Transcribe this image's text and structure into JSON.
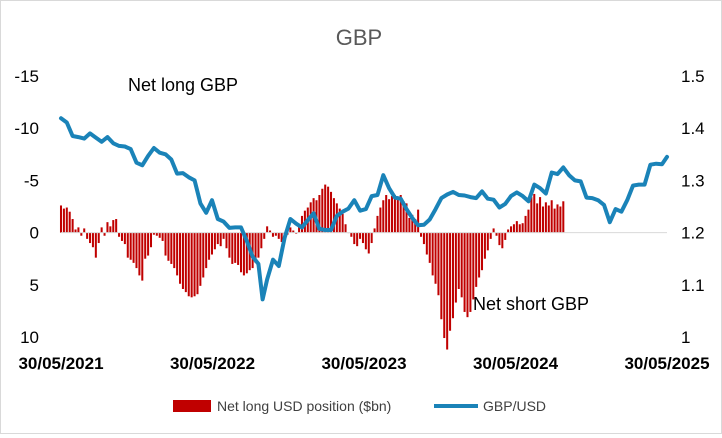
{
  "chart_data": {
    "type": "bar+line",
    "title": "GBP",
    "colors": {
      "bars": "#c00000",
      "line": "#1a83b8",
      "zero_line": "#d9d9d9"
    },
    "grid": false,
    "legend_position": "bottom",
    "left_axis": {
      "inverted": true,
      "ylim": [
        10,
        -15
      ],
      "ticks": [
        -15,
        -10,
        -5,
        0,
        5,
        10
      ],
      "tick_labels": [
        "-15",
        "-10",
        "-5",
        "0",
        "5",
        "10"
      ]
    },
    "right_axis": {
      "ylim": [
        1.0,
        1.5
      ],
      "ticks": [
        1.0,
        1.1,
        1.2,
        1.3,
        1.4,
        1.5
      ],
      "tick_labels": [
        "1",
        "1.1",
        "1.2",
        "1.3",
        "1.4",
        "1.5"
      ]
    },
    "x_axis": {
      "start": "2021-05-30",
      "end": "2025-05-30",
      "tick_labels": [
        "30/05/2021",
        "30/05/2022",
        "30/05/2023",
        "30/05/2024",
        "30/05/2025"
      ]
    },
    "annotations": {
      "top_left": "Net long GBP",
      "bottom_right": "Net short GBP"
    },
    "series": [
      {
        "name": "Net long USD position ($bn)",
        "type": "bar",
        "frequency": "weekly",
        "values": [
          -2.6,
          -2.3,
          -2.4,
          -2.0,
          -1.3,
          -0.3,
          -0.5,
          0.3,
          -0.4,
          0.6,
          1.0,
          1.4,
          2.4,
          1.0,
          -0.5,
          0.3,
          -1.0,
          -0.6,
          -1.2,
          -1.3,
          0.4,
          0.8,
          1.1,
          2.4,
          2.6,
          2.9,
          3.4,
          4.1,
          4.6,
          2.5,
          2.2,
          1.4,
          0.2,
          0.3,
          0.5,
          0.8,
          2.2,
          2.7,
          3.0,
          3.4,
          4.1,
          4.9,
          5.4,
          5.7,
          6.1,
          6.2,
          6.1,
          5.9,
          5.1,
          4.3,
          3.4,
          2.6,
          2.1,
          1.6,
          1.1,
          1.3,
          0.6,
          1.5,
          2.4,
          3.0,
          2.9,
          3.1,
          3.8,
          4.1,
          3.9,
          3.6,
          3.4,
          2.9,
          2.4,
          1.5,
          0.6,
          -0.6,
          -0.2,
          0.4,
          0.3,
          0.6,
          0.9,
          0.8,
          0.2,
          -0.5,
          -0.2,
          0.1,
          -0.6,
          -1.6,
          -2.1,
          -2.4,
          -2.9,
          -3.3,
          -3.1,
          -3.6,
          -4.2,
          -4.6,
          -4.4,
          -3.9,
          -3.3,
          -2.8,
          -2.3,
          -1.8,
          -0.8,
          0.0,
          0.4,
          1.1,
          1.3,
          0.6,
          1.0,
          1.6,
          2.0,
          1.0,
          -0.4,
          -1.6,
          -2.4,
          -3.1,
          -3.6,
          -3.2,
          -3.5,
          -3.6,
          -3.4,
          -3.6,
          -3.0,
          -2.8,
          -1.4,
          -1.7,
          -1.3,
          -2.2,
          0.4,
          1.1,
          2.1,
          2.9,
          4.1,
          4.9,
          6.0,
          8.3,
          10.1,
          11.2,
          9.4,
          8.2,
          6.7,
          5.4,
          6.2,
          7.6,
          8.1,
          7.6,
          6.4,
          5.2,
          4.3,
          3.6,
          2.5,
          1.7,
          0.6,
          -0.4,
          0.3,
          1.2,
          1.5,
          0.7,
          -0.3,
          -0.6,
          -0.8,
          -1.1,
          -0.8,
          -0.9,
          -1.6,
          -2.2,
          -3.4,
          -3.7,
          -2.8,
          -3.4,
          -2.5,
          -2.9,
          -2.6,
          -3.1,
          -2.3,
          -2.7,
          -2.5,
          -3.0
        ]
      },
      {
        "name": "GBP/USD",
        "type": "line",
        "points": [
          [
            "2021-05-30",
            1.419
          ],
          [
            "2021-06-13",
            1.411
          ],
          [
            "2021-06-27",
            1.385
          ],
          [
            "2021-07-11",
            1.383
          ],
          [
            "2021-07-25",
            1.38
          ],
          [
            "2021-08-08",
            1.39
          ],
          [
            "2021-08-22",
            1.382
          ],
          [
            "2021-09-05",
            1.374
          ],
          [
            "2021-09-19",
            1.383
          ],
          [
            "2021-10-03",
            1.371
          ],
          [
            "2021-10-17",
            1.366
          ],
          [
            "2021-10-31",
            1.365
          ],
          [
            "2021-11-14",
            1.36
          ],
          [
            "2021-11-28",
            1.334
          ],
          [
            "2021-12-12",
            1.329
          ],
          [
            "2021-12-26",
            1.347
          ],
          [
            "2022-01-09",
            1.362
          ],
          [
            "2022-01-23",
            1.353
          ],
          [
            "2022-02-06",
            1.35
          ],
          [
            "2022-02-20",
            1.34
          ],
          [
            "2022-03-06",
            1.313
          ],
          [
            "2022-03-20",
            1.314
          ],
          [
            "2022-04-03",
            1.306
          ],
          [
            "2022-04-17",
            1.3
          ],
          [
            "2022-05-01",
            1.256
          ],
          [
            "2022-05-15",
            1.238
          ],
          [
            "2022-05-29",
            1.262
          ],
          [
            "2022-06-12",
            1.226
          ],
          [
            "2022-06-26",
            1.221
          ],
          [
            "2022-07-10",
            1.209
          ],
          [
            "2022-07-24",
            1.21
          ],
          [
            "2022-08-07",
            1.21
          ],
          [
            "2022-08-21",
            1.184
          ],
          [
            "2022-09-04",
            1.154
          ],
          [
            "2022-09-18",
            1.14
          ],
          [
            "2022-09-28",
            1.072
          ],
          [
            "2022-10-09",
            1.11
          ],
          [
            "2022-10-23",
            1.148
          ],
          [
            "2022-11-06",
            1.136
          ],
          [
            "2022-11-20",
            1.19
          ],
          [
            "2022-12-04",
            1.226
          ],
          [
            "2022-12-18",
            1.217
          ],
          [
            "2023-01-01",
            1.21
          ],
          [
            "2023-01-15",
            1.224
          ],
          [
            "2023-01-29",
            1.237
          ],
          [
            "2023-02-12",
            1.207
          ],
          [
            "2023-02-26",
            1.205
          ],
          [
            "2023-03-12",
            1.205
          ],
          [
            "2023-03-26",
            1.232
          ],
          [
            "2023-04-09",
            1.24
          ],
          [
            "2023-04-23",
            1.246
          ],
          [
            "2023-05-07",
            1.262
          ],
          [
            "2023-05-21",
            1.242
          ],
          [
            "2023-06-04",
            1.245
          ],
          [
            "2023-06-18",
            1.27
          ],
          [
            "2023-07-02",
            1.272
          ],
          [
            "2023-07-16",
            1.31
          ],
          [
            "2023-07-30",
            1.285
          ],
          [
            "2023-08-13",
            1.267
          ],
          [
            "2023-08-27",
            1.265
          ],
          [
            "2023-09-10",
            1.245
          ],
          [
            "2023-09-24",
            1.228
          ],
          [
            "2023-10-08",
            1.214
          ],
          [
            "2023-10-22",
            1.215
          ],
          [
            "2023-11-05",
            1.225
          ],
          [
            "2023-11-19",
            1.245
          ],
          [
            "2023-12-03",
            1.266
          ],
          [
            "2023-12-17",
            1.273
          ],
          [
            "2023-12-31",
            1.278
          ],
          [
            "2024-01-14",
            1.272
          ],
          [
            "2024-01-28",
            1.271
          ],
          [
            "2024-02-11",
            1.268
          ],
          [
            "2024-02-25",
            1.266
          ],
          [
            "2024-03-10",
            1.279
          ],
          [
            "2024-03-24",
            1.265
          ],
          [
            "2024-04-07",
            1.263
          ],
          [
            "2024-04-21",
            1.248
          ],
          [
            "2024-05-05",
            1.255
          ],
          [
            "2024-05-19",
            1.27
          ],
          [
            "2024-06-02",
            1.277
          ],
          [
            "2024-06-16",
            1.27
          ],
          [
            "2024-06-30",
            1.26
          ],
          [
            "2024-07-14",
            1.292
          ],
          [
            "2024-07-28",
            1.285
          ],
          [
            "2024-08-11",
            1.275
          ],
          [
            "2024-08-25",
            1.315
          ],
          [
            "2024-09-08",
            1.312
          ],
          [
            "2024-09-22",
            1.325
          ],
          [
            "2024-10-06",
            1.31
          ],
          [
            "2024-10-20",
            1.3
          ],
          [
            "2024-11-03",
            1.298
          ],
          [
            "2024-11-17",
            1.267
          ],
          [
            "2024-12-01",
            1.266
          ],
          [
            "2024-12-15",
            1.262
          ],
          [
            "2024-12-29",
            1.253
          ],
          [
            "2025-01-12",
            1.22
          ],
          [
            "2025-01-26",
            1.245
          ],
          [
            "2025-02-09",
            1.24
          ],
          [
            "2025-02-23",
            1.262
          ],
          [
            "2025-03-09",
            1.29
          ],
          [
            "2025-03-23",
            1.292
          ],
          [
            "2025-04-06",
            1.292
          ],
          [
            "2025-04-20",
            1.33
          ],
          [
            "2025-05-04",
            1.332
          ],
          [
            "2025-05-18",
            1.331
          ],
          [
            "2025-05-30",
            1.345
          ]
        ]
      }
    ]
  }
}
